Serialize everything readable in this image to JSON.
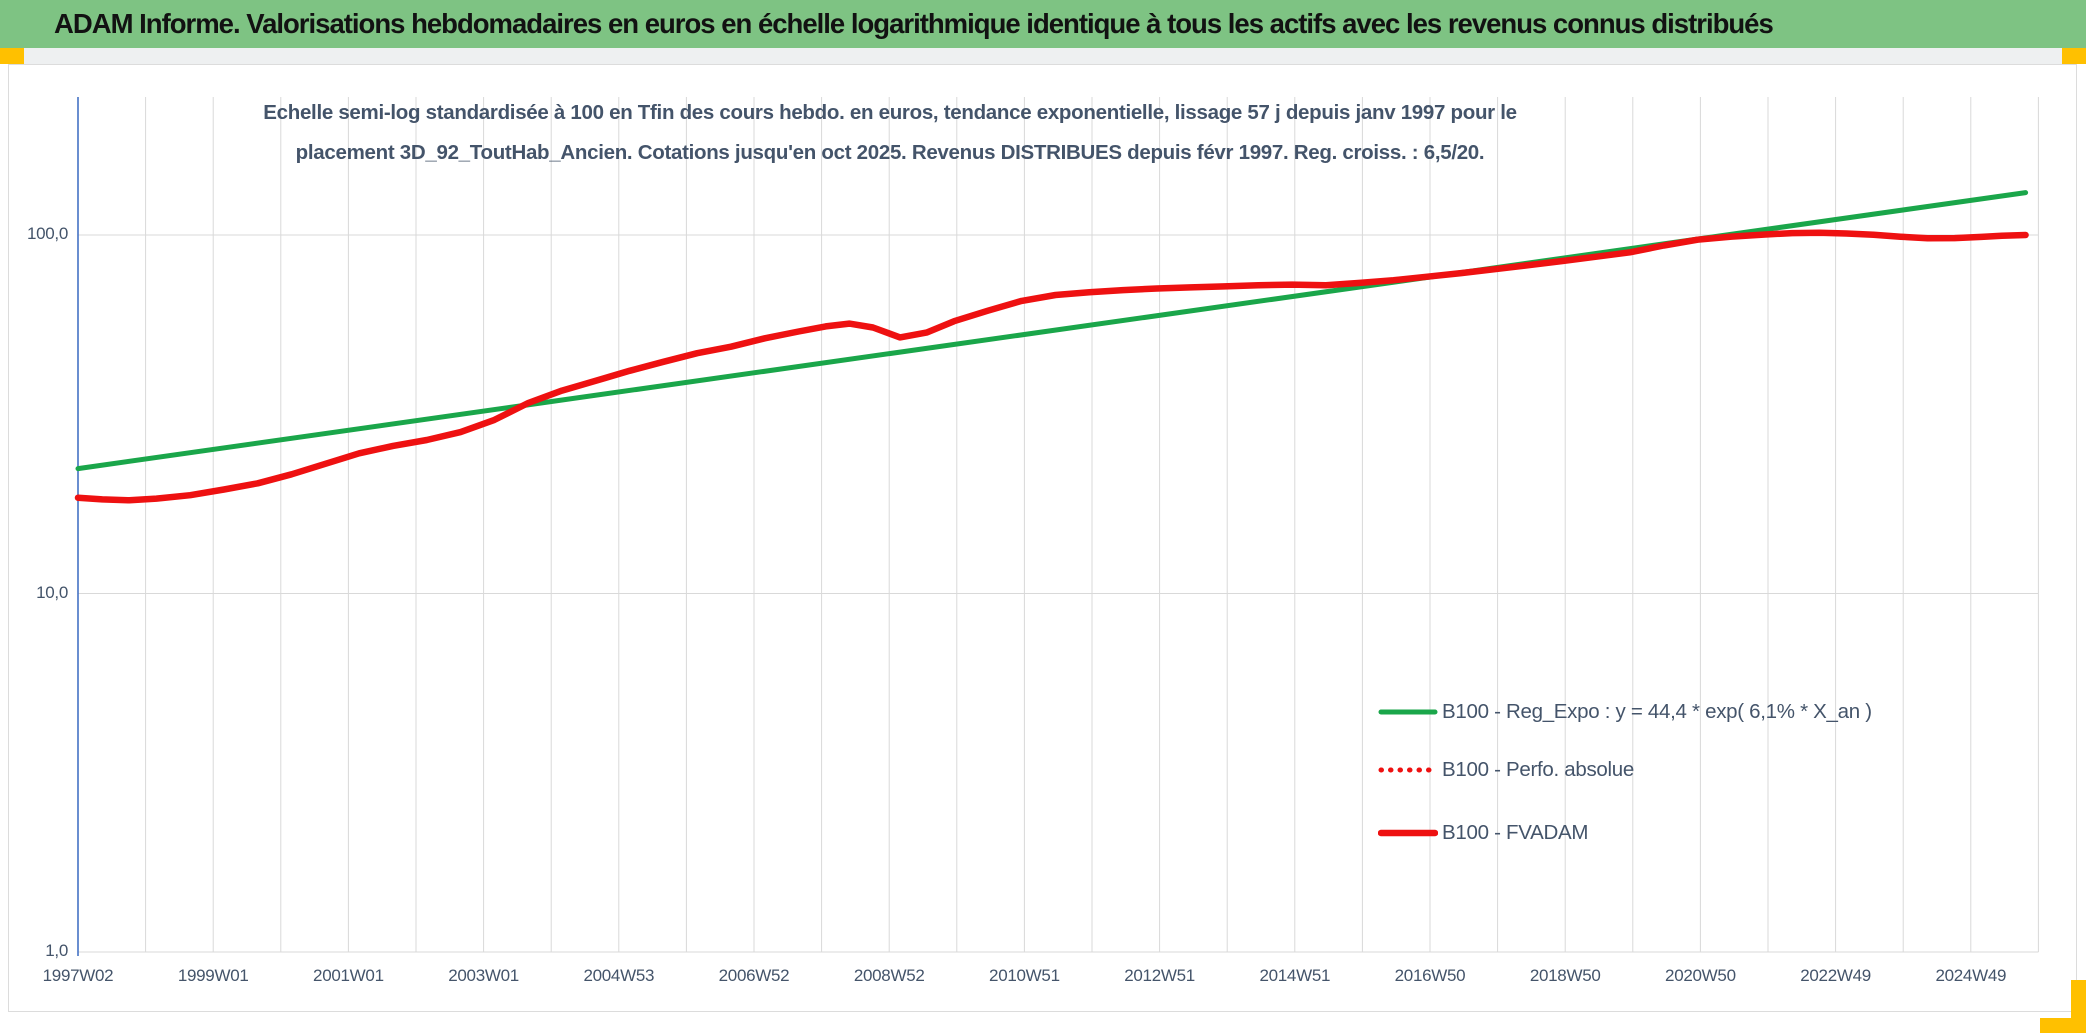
{
  "header": {
    "title": "ADAM Informe. Valorisations hebdomadaires en euros en échelle logarithmique identique à tous les actifs avec les revenus connus distribués"
  },
  "colors": {
    "title_bar_background": "#7EC383",
    "accent_cell": "#FFC000",
    "text_slate": "#44546A",
    "gridline": "#D9D9D9",
    "axis_line": "#4472C4",
    "series_green": "#1AA64A",
    "series_red": "#EE1111"
  },
  "chart_data": {
    "type": "line",
    "title_lines": [
      "Echelle semi-log standardisée à 100 en Tfin des cours hebdo. en euros, tendance exponentielle, lissage 57 j depuis janv 1997 pour le",
      "placement 3D_92_ToutHab_Ancien. Cotations jusqu'en oct 2025. Revenus DISTRIBUES depuis févr 1997. Reg. croiss. : 6,5/20."
    ],
    "legend_position": "inside-lower-right",
    "grid": true,
    "x_axis": {
      "start_year": 1997.04,
      "tick_interval_years": 2,
      "ticks": [
        "1997W02",
        "1999W01",
        "2001W01",
        "2003W01",
        "2004W53",
        "2006W52",
        "2008W52",
        "2010W51",
        "2012W51",
        "2014W51",
        "2016W50",
        "2018W50",
        "2020W50",
        "2022W49",
        "2024W49"
      ]
    },
    "y_axis": {
      "scale": "log",
      "ticks": [
        {
          "label": "100,0",
          "value": 100
        },
        {
          "label": "10,0",
          "value": 10
        },
        {
          "label": "1,0",
          "value": 1
        }
      ],
      "range": [
        1,
        240
      ]
    },
    "series": [
      {
        "name": "B100 - Reg_Expo : y = 44,4 * exp( 6,1% * X_an )",
        "color": "#1AA64A",
        "style": "solid",
        "width": 5,
        "points": [
          [
            1997.04,
            22.3
          ],
          [
            2025.85,
            131.3
          ]
        ]
      },
      {
        "name": "B100 - Perfo. absolue",
        "color": "#EE1111",
        "style": "dotted",
        "width": 5,
        "points_same_as": 2,
        "points": []
      },
      {
        "name": "B100 - FVADAM",
        "color": "#EE1111",
        "style": "solid",
        "width": 6.5,
        "points": [
          [
            1997.04,
            18.5
          ],
          [
            1997.4,
            18.3
          ],
          [
            1997.8,
            18.2
          ],
          [
            1998.2,
            18.4
          ],
          [
            1998.7,
            18.8
          ],
          [
            1999.2,
            19.5
          ],
          [
            1999.7,
            20.3
          ],
          [
            2000.2,
            21.5
          ],
          [
            2000.7,
            23.0
          ],
          [
            2001.2,
            24.6
          ],
          [
            2001.7,
            25.8
          ],
          [
            2002.2,
            26.8
          ],
          [
            2002.7,
            28.2
          ],
          [
            2003.2,
            30.5
          ],
          [
            2003.7,
            34.0
          ],
          [
            2004.2,
            36.8
          ],
          [
            2004.7,
            39.2
          ],
          [
            2005.2,
            41.8
          ],
          [
            2005.7,
            44.3
          ],
          [
            2006.2,
            46.8
          ],
          [
            2006.7,
            48.8
          ],
          [
            2007.2,
            51.5
          ],
          [
            2007.7,
            53.8
          ],
          [
            2008.1,
            55.6
          ],
          [
            2008.45,
            56.6
          ],
          [
            2008.8,
            55.2
          ],
          [
            2009.2,
            51.8
          ],
          [
            2009.6,
            53.5
          ],
          [
            2010.0,
            57.5
          ],
          [
            2010.5,
            61.5
          ],
          [
            2011.0,
            65.5
          ],
          [
            2011.5,
            68.0
          ],
          [
            2012.0,
            69.2
          ],
          [
            2012.5,
            70.2
          ],
          [
            2013.0,
            70.9
          ],
          [
            2013.5,
            71.4
          ],
          [
            2014.0,
            71.9
          ],
          [
            2014.5,
            72.4
          ],
          [
            2015.0,
            72.7
          ],
          [
            2015.5,
            72.4
          ],
          [
            2016.0,
            73.5
          ],
          [
            2016.5,
            74.8
          ],
          [
            2017.0,
            76.5
          ],
          [
            2017.5,
            78.3
          ],
          [
            2018.0,
            80.3
          ],
          [
            2018.5,
            82.4
          ],
          [
            2019.0,
            84.6
          ],
          [
            2019.5,
            87.0
          ],
          [
            2020.0,
            89.5
          ],
          [
            2020.5,
            93.5
          ],
          [
            2021.0,
            97.0
          ],
          [
            2021.5,
            99.0
          ],
          [
            2022.0,
            100.3
          ],
          [
            2022.4,
            101.2
          ],
          [
            2022.8,
            101.5
          ],
          [
            2023.2,
            101.0
          ],
          [
            2023.6,
            100.2
          ],
          [
            2024.0,
            98.9
          ],
          [
            2024.4,
            97.9
          ],
          [
            2024.8,
            98.0
          ],
          [
            2025.2,
            98.8
          ],
          [
            2025.5,
            99.5
          ],
          [
            2025.85,
            100.0
          ]
        ]
      }
    ]
  }
}
